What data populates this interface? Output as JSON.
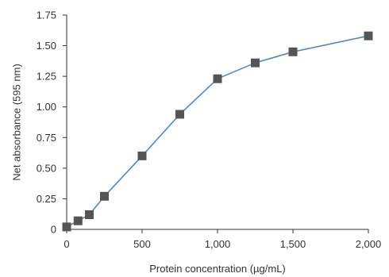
{
  "chart_data": {
    "type": "line",
    "title": "",
    "xlabel": "Protein concentration (µg/mL)",
    "ylabel": "Net absorbance (595 nm)",
    "xlim": [
      0,
      2000
    ],
    "ylim": [
      0,
      1.75
    ],
    "x_ticks": [
      0,
      500,
      1000,
      1500,
      2000
    ],
    "x_tick_labels": [
      "0",
      "500",
      "1,000",
      "1,500",
      "2,000"
    ],
    "y_ticks": [
      0,
      0.25,
      0.5,
      0.75,
      1.0,
      1.25,
      1.5,
      1.75
    ],
    "y_tick_labels": [
      "0",
      "0.25",
      "0.50",
      "0.75",
      "1.00",
      "1.25",
      "1.50",
      "1.75"
    ],
    "grid": false,
    "colors": {
      "line": "#5b87b0",
      "marker": "#555555",
      "axis": "#333333"
    },
    "series": [
      {
        "marker": "square",
        "x": [
          0,
          75,
          150,
          250,
          500,
          750,
          1000,
          1250,
          1500,
          2000
        ],
        "y": [
          0.02,
          0.07,
          0.12,
          0.27,
          0.6,
          0.94,
          1.23,
          1.36,
          1.45,
          1.58
        ]
      }
    ]
  }
}
